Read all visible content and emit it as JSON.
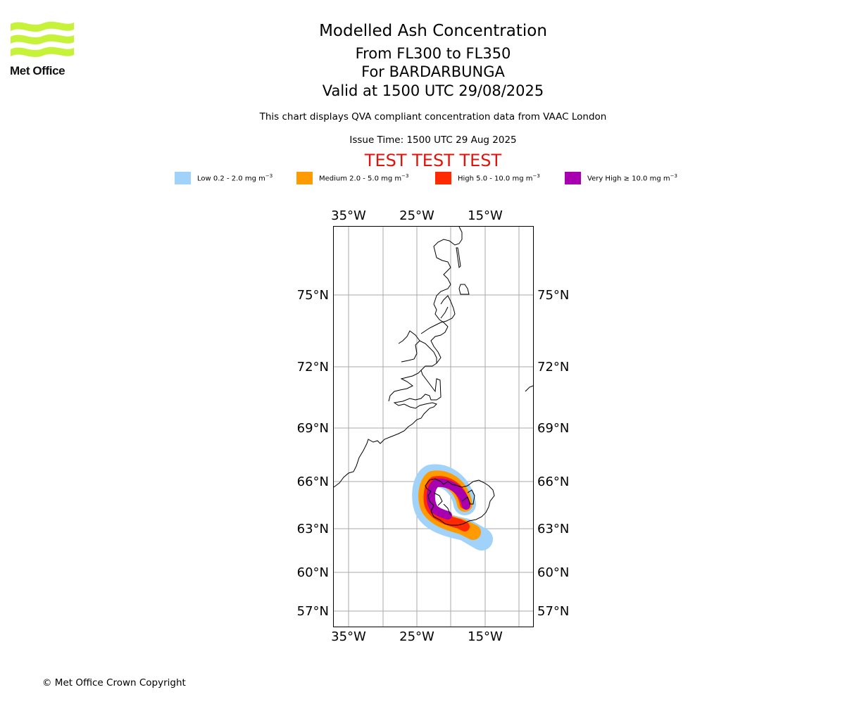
{
  "logo": {
    "name": "Met Office",
    "brand_color": "#c6f23a"
  },
  "title": "Modelled Ash Concentration",
  "subtitle_1": "From FL300 to FL350",
  "subtitle_2": "For BARDARBUNGA",
  "subtitle_3": "Valid at 1500 UTC 29/08/2025",
  "description": "This chart displays QVA compliant concentration data from VAAC London",
  "issue_time": "Issue Time: 1500 UTC 29 Aug 2025",
  "test_banner": "TEST TEST TEST",
  "legend": [
    {
      "label": "Low 0.2 - 2.0 mg m",
      "exp": "−3",
      "color": "#a0d2fa"
    },
    {
      "label": "Medium 2.0 - 5.0 mg m",
      "exp": "−3",
      "color": "#ff9a00"
    },
    {
      "label": "High 5.0 - 10.0 mg m",
      "exp": "−3",
      "color": "#ff2a00"
    },
    {
      "label": "Very High ≥ 10.0 mg m",
      "exp": "−3",
      "color": "#a800b0"
    }
  ],
  "map": {
    "lon_labels": [
      "35°W",
      "25°W",
      "15°W"
    ],
    "lat_labels": [
      "75°N",
      "72°N",
      "69°N",
      "66°N",
      "63°N",
      "60°N",
      "57°N"
    ],
    "gridlines": "on",
    "region": "Greenland east coast and Iceland",
    "colors": {
      "grid": "#aaaaaa",
      "coast": "#000000"
    }
  },
  "copyright": "© Met Office Crown Copyright"
}
